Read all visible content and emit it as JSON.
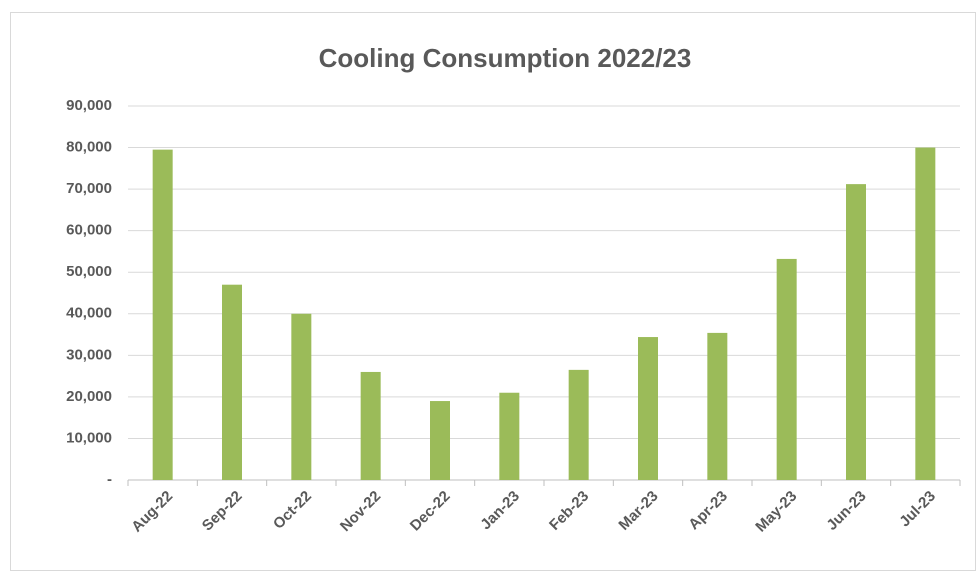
{
  "chart_data": {
    "type": "bar",
    "title": "Cooling Consumption 2022/23",
    "categories": [
      "Aug-22",
      "Sep-22",
      "Oct-22",
      "Nov-22",
      "Dec-22",
      "Jan-23",
      "Feb-23",
      "Mar-23",
      "Apr-23",
      "May-23",
      "Jun-23",
      "Jul-23"
    ],
    "values": [
      79500,
      47000,
      40000,
      26000,
      19000,
      21000,
      26500,
      34400,
      35400,
      53200,
      71200,
      80000
    ],
    "color": "#9bbb59",
    "ylim": [
      0,
      90000
    ],
    "yticks": [
      {
        "value": 0,
        "label": "-"
      },
      {
        "value": 10000,
        "label": "10,000"
      },
      {
        "value": 20000,
        "label": "20,000"
      },
      {
        "value": 30000,
        "label": "30,000"
      },
      {
        "value": 40000,
        "label": "40,000"
      },
      {
        "value": 50000,
        "label": "50,000"
      },
      {
        "value": 60000,
        "label": "60,000"
      },
      {
        "value": 70000,
        "label": "70,000"
      },
      {
        "value": 80000,
        "label": "80,000"
      },
      {
        "value": 90000,
        "label": "90,000"
      }
    ],
    "grid": true
  }
}
